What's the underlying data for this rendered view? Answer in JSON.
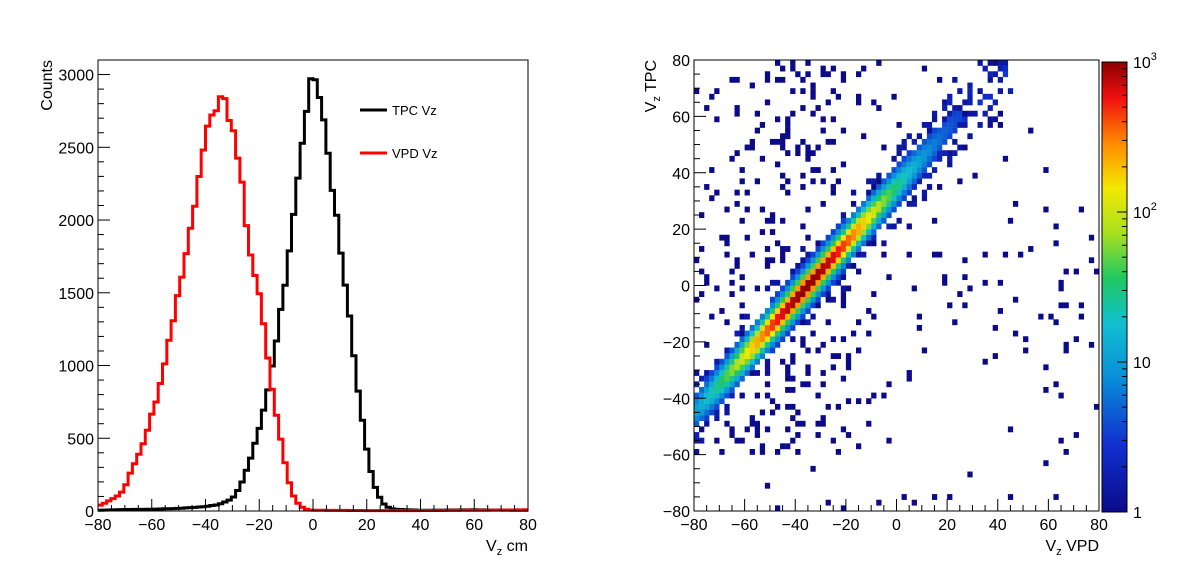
{
  "chart_data": [
    {
      "type": "histogram",
      "title": "",
      "xlabel": "V_z cm",
      "xlabel_main": "V",
      "xlabel_sub": "z",
      "xlabel_rest": " cm",
      "ylabel": "Counts",
      "xlim": [
        -80,
        80
      ],
      "ylim": [
        0,
        3000
      ],
      "x_ticks": [
        "−80",
        "−60",
        "−40",
        "−20",
        "0",
        "20",
        "40",
        "60",
        "80"
      ],
      "x_tick_values": [
        -80,
        -60,
        -40,
        -20,
        0,
        20,
        40,
        60,
        80
      ],
      "y_ticks": [
        "0",
        "500",
        "1000",
        "1500",
        "2000",
        "2500",
        "3000"
      ],
      "y_tick_values": [
        0,
        500,
        1000,
        1500,
        2000,
        2500,
        3000
      ],
      "legend_position": "top-right",
      "series": [
        {
          "name": "TPC Vz",
          "color": "#000000",
          "points": [
            [
              -80,
              5
            ],
            [
              -70,
              10
            ],
            [
              -60,
              12
            ],
            [
              -50,
              18
            ],
            [
              -40,
              30
            ],
            [
              -35,
              45
            ],
            [
              -30,
              85
            ],
            [
              -27,
              170
            ],
            [
              -24,
              320
            ],
            [
              -20,
              560
            ],
            [
              -17,
              820
            ],
            [
              -14,
              1100
            ],
            [
              -12,
              1380
            ],
            [
              -10,
              1620
            ],
            [
              -8,
              1900
            ],
            [
              -6,
              2200
            ],
            [
              -4,
              2560
            ],
            [
              -2,
              2800
            ],
            [
              -1,
              2920
            ],
            [
              0,
              2960
            ],
            [
              2,
              2880
            ],
            [
              4,
              2700
            ],
            [
              6,
              2400
            ],
            [
              8,
              2120
            ],
            [
              10,
              1840
            ],
            [
              12,
              1560
            ],
            [
              14,
              1280
            ],
            [
              16,
              920
            ],
            [
              18,
              680
            ],
            [
              20,
              420
            ],
            [
              22,
              230
            ],
            [
              24,
              120
            ],
            [
              26,
              55
            ],
            [
              28,
              25
            ],
            [
              30,
              12
            ],
            [
              40,
              5
            ],
            [
              60,
              8
            ],
            [
              80,
              5
            ]
          ]
        },
        {
          "name": "VPD Vz",
          "color": "#ff0000",
          "points": [
            [
              -80,
              35
            ],
            [
              -78,
              50
            ],
            [
              -75,
              80
            ],
            [
              -72,
              110
            ],
            [
              -70,
              160
            ],
            [
              -68,
              260
            ],
            [
              -65,
              380
            ],
            [
              -62,
              520
            ],
            [
              -60,
              660
            ],
            [
              -58,
              780
            ],
            [
              -56,
              930
            ],
            [
              -54,
              1120
            ],
            [
              -52,
              1310
            ],
            [
              -50,
              1500
            ],
            [
              -48,
              1680
            ],
            [
              -46,
              1900
            ],
            [
              -44,
              2120
            ],
            [
              -42,
              2380
            ],
            [
              -40,
              2560
            ],
            [
              -38,
              2700
            ],
            [
              -36,
              2780
            ],
            [
              -34,
              2860
            ],
            [
              -32,
              2780
            ],
            [
              -30,
              2640
            ],
            [
              -28,
              2460
            ],
            [
              -26,
              2220
            ],
            [
              -24,
              1820
            ],
            [
              -22,
              1640
            ],
            [
              -20,
              1480
            ],
            [
              -18,
              1240
            ],
            [
              -16,
              930
            ],
            [
              -14,
              700
            ],
            [
              -12,
              500
            ],
            [
              -10,
              290
            ],
            [
              -8,
              130
            ],
            [
              -6,
              60
            ],
            [
              -4,
              25
            ],
            [
              -2,
              8
            ],
            [
              0,
              5
            ],
            [
              20,
              3
            ],
            [
              40,
              3
            ],
            [
              60,
              5
            ],
            [
              80,
              8
            ]
          ]
        }
      ]
    },
    {
      "type": "heatmap",
      "title": "",
      "xlabel": "V_z VPD",
      "xlabel_main": "V",
      "xlabel_sub": "z",
      "xlabel_rest": " VPD",
      "ylabel": "V_z TPC",
      "ylabel_main": "V",
      "ylabel_sub": "z",
      "ylabel_rest": " TPC",
      "xlim": [
        -80,
        80
      ],
      "ylim": [
        -80,
        80
      ],
      "x_ticks": [
        "−80",
        "−60",
        "−40",
        "−20",
        "0",
        "20",
        "40",
        "60",
        "80"
      ],
      "x_tick_values": [
        -80,
        -60,
        -40,
        -20,
        0,
        20,
        40,
        60,
        80
      ],
      "y_ticks": [
        "−80",
        "−60",
        "−40",
        "−20",
        "0",
        "20",
        "40",
        "60",
        "80"
      ],
      "y_tick_values": [
        -80,
        -60,
        -40,
        -20,
        0,
        20,
        40,
        60,
        80
      ],
      "z_scale": "log",
      "zlim": [
        1,
        1000
      ],
      "colorbar_ticks": [
        {
          "base": "1",
          "exp": "",
          "value": 1
        },
        {
          "base": "10",
          "exp": "",
          "value": 10
        },
        {
          "base": "10",
          "exp": "2",
          "value": 100
        },
        {
          "base": "10",
          "exp": "3",
          "value": 1000
        }
      ],
      "main_band": {
        "relation": "TPC = VPD + 35",
        "x_range": [
          -80,
          45
        ],
        "peak_count": 1000
      },
      "scatter_band": {
        "x_range": [
          -80,
          80
        ],
        "y_range": [
          -80,
          80
        ],
        "count": 1
      }
    }
  ]
}
